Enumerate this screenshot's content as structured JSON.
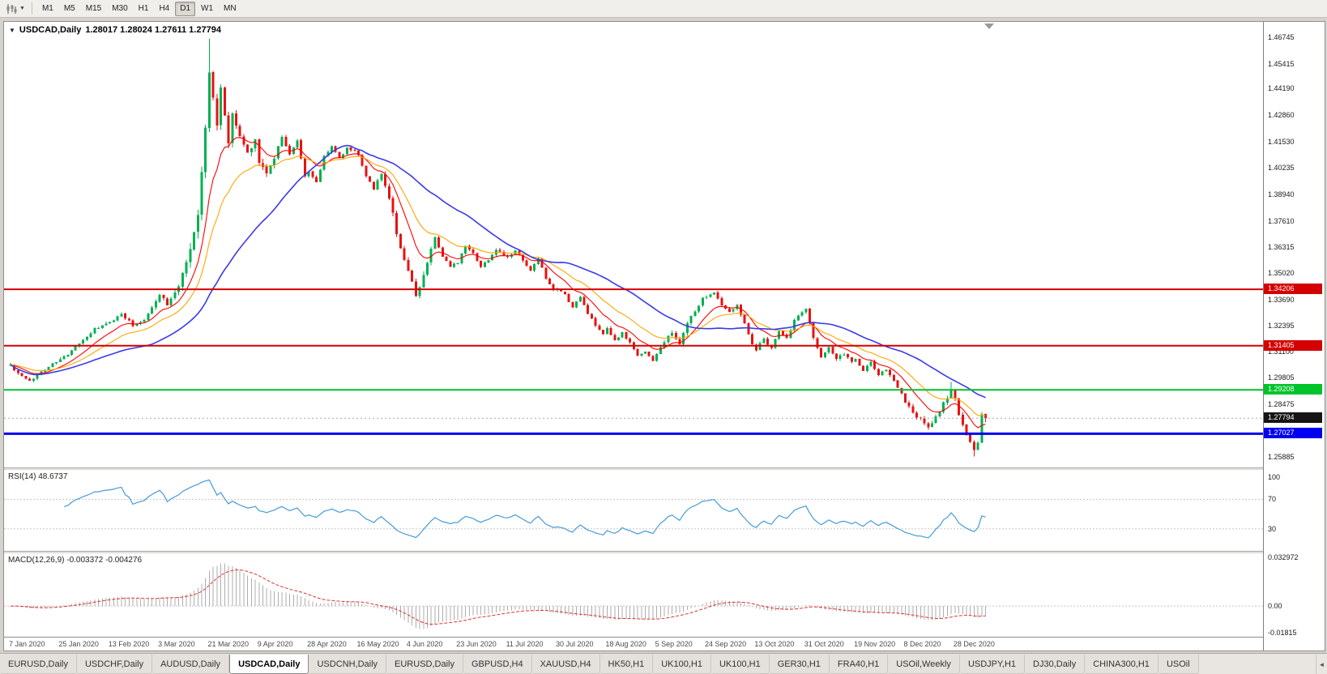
{
  "colors": {
    "up": "#00B050",
    "down": "#E81212",
    "ma_fast": "#FF0000",
    "ma_mid": "#FFA500",
    "ma_slow": "#3A3AE8",
    "rsi": "#459BD7",
    "macd_hist": "#ADADAD",
    "macd_signal": "#E03030",
    "badge_black": "#151515"
  },
  "toolbar": {
    "chart_type_icon": "candlestick-chart-icon",
    "timeframes": [
      "M1",
      "M5",
      "M15",
      "M30",
      "H1",
      "H4",
      "D1",
      "W1",
      "MN"
    ],
    "active_timeframe": "D1"
  },
  "chart": {
    "symbol_label": "USDCAD,Daily",
    "quote_text": "1.28017 1.28024 1.27611 1.27794",
    "ohlc": {
      "open": "1.28017",
      "high": "1.28024",
      "low": "1.27611",
      "close": "1.27794"
    }
  },
  "indicators": {
    "rsi_label": "RSI(14) 48.6737",
    "macd_label": "MACD(12,26,9) -0.003372 -0.004276"
  },
  "chart_data": {
    "type": "candlestick",
    "symbol": "USDCAD",
    "timeframe": "Daily",
    "bars": 256,
    "price_axis": {
      "min": 1.2535,
      "max": 1.475,
      "ticks": [
        "1.46745",
        "1.45415",
        "1.44190",
        "1.42860",
        "1.41530",
        "1.40235",
        "1.38940",
        "1.37610",
        "1.36315",
        "1.35020",
        "1.33690",
        "1.32395",
        "1.31100",
        "1.29805",
        "1.28475",
        "1.25885"
      ]
    },
    "x_labels": [
      {
        "i": 0,
        "t": "7 Jan 2020"
      },
      {
        "i": 13,
        "t": "25 Jan 2020"
      },
      {
        "i": 26,
        "t": "13 Feb 2020"
      },
      {
        "i": 39,
        "t": "3 Mar 2020"
      },
      {
        "i": 52,
        "t": "21 Mar 2020"
      },
      {
        "i": 65,
        "t": "9 Apr 2020"
      },
      {
        "i": 78,
        "t": "28 Apr 2020"
      },
      {
        "i": 91,
        "t": "16 May 2020"
      },
      {
        "i": 104,
        "t": "4 Jun 2020"
      },
      {
        "i": 117,
        "t": "23 Jun 2020"
      },
      {
        "i": 130,
        "t": "11 Jul 2020"
      },
      {
        "i": 143,
        "t": "30 Jul 2020"
      },
      {
        "i": 156,
        "t": "18 Aug 2020"
      },
      {
        "i": 169,
        "t": "5 Sep 2020"
      },
      {
        "i": 182,
        "t": "24 Sep 2020"
      },
      {
        "i": 195,
        "t": "13 Oct 2020"
      },
      {
        "i": 208,
        "t": "31 Oct 2020"
      },
      {
        "i": 221,
        "t": "19 Nov 2020"
      },
      {
        "i": 234,
        "t": "8 Dec 2020"
      },
      {
        "i": 247,
        "t": "28 Dec 2020"
      }
    ],
    "close_anchors": [
      [
        0,
        1.3045
      ],
      [
        2,
        1.3
      ],
      [
        5,
        1.2962
      ],
      [
        8,
        1.3012
      ],
      [
        11,
        1.305
      ],
      [
        14,
        1.3082
      ],
      [
        18,
        1.315
      ],
      [
        22,
        1.3222
      ],
      [
        26,
        1.3255
      ],
      [
        29,
        1.33
      ],
      [
        32,
        1.3242
      ],
      [
        35,
        1.3272
      ],
      [
        38,
        1.336
      ],
      [
        39,
        1.34
      ],
      [
        41,
        1.3345
      ],
      [
        43,
        1.34
      ],
      [
        45,
        1.3485
      ],
      [
        47,
        1.36
      ],
      [
        49,
        1.379
      ],
      [
        50,
        1.399
      ],
      [
        51,
        1.422
      ],
      [
        52,
        1.449
      ],
      [
        53,
        1.438
      ],
      [
        54,
        1.4255
      ],
      [
        55,
        1.4405
      ],
      [
        56,
        1.43
      ],
      [
        57,
        1.4155
      ],
      [
        58,
        1.4282
      ],
      [
        60,
        1.4185
      ],
      [
        62,
        1.4095
      ],
      [
        64,
        1.4168
      ],
      [
        65,
        1.4062
      ],
      [
        67,
        1.3992
      ],
      [
        69,
        1.4082
      ],
      [
        71,
        1.418
      ],
      [
        73,
        1.4092
      ],
      [
        75,
        1.4158
      ],
      [
        77,
        1.3985
      ],
      [
        78,
        1.4008
      ],
      [
        80,
        1.3952
      ],
      [
        82,
        1.4082
      ],
      [
        84,
        1.4132
      ],
      [
        86,
        1.4072
      ],
      [
        88,
        1.4122
      ],
      [
        90,
        1.4108
      ],
      [
        91,
        1.4092
      ],
      [
        93,
        1.3982
      ],
      [
        95,
        1.3922
      ],
      [
        97,
        1.3992
      ],
      [
        99,
        1.3882
      ],
      [
        101,
        1.3702
      ],
      [
        103,
        1.3562
      ],
      [
        104,
        1.3502
      ],
      [
        106,
        1.3392
      ],
      [
        107,
        1.3422
      ],
      [
        109,
        1.3562
      ],
      [
        111,
        1.3682
      ],
      [
        113,
        1.3582
      ],
      [
        115,
        1.3532
      ],
      [
        117,
        1.3555
      ],
      [
        119,
        1.3642
      ],
      [
        121,
        1.3602
      ],
      [
        123,
        1.3532
      ],
      [
        125,
        1.3572
      ],
      [
        127,
        1.3612
      ],
      [
        129,
        1.3592
      ],
      [
        130,
        1.3582
      ],
      [
        132,
        1.3612
      ],
      [
        134,
        1.3562
      ],
      [
        136,
        1.3512
      ],
      [
        138,
        1.3572
      ],
      [
        140,
        1.3472
      ],
      [
        142,
        1.3412
      ],
      [
        143,
        1.3422
      ],
      [
        145,
        1.3392
      ],
      [
        147,
        1.3332
      ],
      [
        149,
        1.3382
      ],
      [
        151,
        1.3302
      ],
      [
        153,
        1.3242
      ],
      [
        155,
        1.3192
      ],
      [
        156,
        1.3222
      ],
      [
        158,
        1.3162
      ],
      [
        160,
        1.3202
      ],
      [
        162,
        1.3152
      ],
      [
        164,
        1.3092
      ],
      [
        166,
        1.3112
      ],
      [
        168,
        1.3062
      ],
      [
        169,
        1.3102
      ],
      [
        171,
        1.3162
      ],
      [
        173,
        1.3202
      ],
      [
        175,
        1.3152
      ],
      [
        177,
        1.3252
      ],
      [
        179,
        1.3312
      ],
      [
        181,
        1.3372
      ],
      [
        182,
        1.3382
      ],
      [
        184,
        1.3412
      ],
      [
        186,
        1.3342
      ],
      [
        188,
        1.3312
      ],
      [
        190,
        1.3342
      ],
      [
        192,
        1.3252
      ],
      [
        194,
        1.3152
      ],
      [
        195,
        1.3122
      ],
      [
        197,
        1.3172
      ],
      [
        199,
        1.3132
      ],
      [
        201,
        1.3212
      ],
      [
        203,
        1.3182
      ],
      [
        205,
        1.3262
      ],
      [
        207,
        1.3312
      ],
      [
        208,
        1.3322
      ],
      [
        210,
        1.3182
      ],
      [
        212,
        1.3082
      ],
      [
        214,
        1.3132
      ],
      [
        216,
        1.3072
      ],
      [
        218,
        1.3102
      ],
      [
        220,
        1.3062
      ],
      [
        221,
        1.3072
      ],
      [
        223,
        1.3012
      ],
      [
        225,
        1.3062
      ],
      [
        227,
        1.2992
      ],
      [
        229,
        1.3022
      ],
      [
        231,
        1.2962
      ],
      [
        233,
        1.2902
      ],
      [
        234,
        1.2862
      ],
      [
        236,
        1.2802
      ],
      [
        238,
        1.2772
      ],
      [
        240,
        1.2732
      ],
      [
        242,
        1.2782
      ],
      [
        244,
        1.2852
      ],
      [
        246,
        1.2922
      ],
      [
        247,
        1.2872
      ],
      [
        248,
        1.2792
      ],
      [
        249,
        1.2752
      ],
      [
        250,
        1.2702
      ],
      [
        251,
        1.2662
      ],
      [
        252,
        1.2622
      ],
      [
        253,
        1.2655
      ],
      [
        254,
        1.2802
      ],
      [
        255,
        1.27794
      ]
    ],
    "overrides": {
      "52": {
        "h": 1.4668
      },
      "246": {
        "h": 1.296
      },
      "252": {
        "l": 1.259
      },
      "255": {
        "o": 1.28017,
        "h": 1.28024,
        "l": 1.27611,
        "c": 1.27794
      }
    },
    "levels": [
      {
        "price": 1.34206,
        "label": "1.34206",
        "color": "#D40000",
        "width": 2
      },
      {
        "price": 1.31405,
        "label": "1.31405",
        "color": "#D40000",
        "width": 2
      },
      {
        "price": 1.29208,
        "label": "1.29208",
        "color": "#00C32B",
        "width": 2
      },
      {
        "price": 1.27027,
        "label": "1.27027",
        "color": "#0000F0",
        "width": 3
      }
    ],
    "current_price": {
      "price": 1.27794,
      "label": "1.27794"
    },
    "moving_averages": [
      {
        "type": "ema",
        "period": 10,
        "color": "#FF0000"
      },
      {
        "type": "ema",
        "period": 20,
        "color": "#FFA500"
      },
      {
        "type": "sma",
        "period": 38,
        "color": "#3A3AE8"
      }
    ],
    "rsi": {
      "period": 14,
      "current": "48.6737",
      "levels": [
        "100",
        "70",
        "30"
      ],
      "level_values": [
        100,
        70,
        30
      ],
      "range": [
        0,
        110
      ]
    },
    "macd": {
      "fast": 12,
      "slow": 26,
      "signal": 9,
      "values_shown": [
        "-0.003372",
        "-0.004276"
      ],
      "ticks": [
        {
          "v": 0.032972,
          "t": "0.032972"
        },
        {
          "v": 0,
          "t": "0.00"
        },
        {
          "v": -0.01815,
          "t": "-0.01815"
        }
      ],
      "range": [
        -0.021,
        0.036
      ]
    }
  },
  "tabs": {
    "items": [
      "EURUSD,Daily",
      "USDCHF,Daily",
      "AUDUSD,Daily",
      "USDCAD,Daily",
      "USDCNH,Daily",
      "EURUSD,Daily",
      "GBPUSD,H4",
      "XAUUSD,H4",
      "HK50,H1",
      "UK100,H1",
      "UK100,H1",
      "GER30,H1",
      "FRA40,H1",
      "USOil,Weekly",
      "USDJPY,H1",
      "DJ30,Daily",
      "CHINA300,H1",
      "USOil"
    ],
    "active_index": 3,
    "scroll_left_icon": "◄"
  }
}
